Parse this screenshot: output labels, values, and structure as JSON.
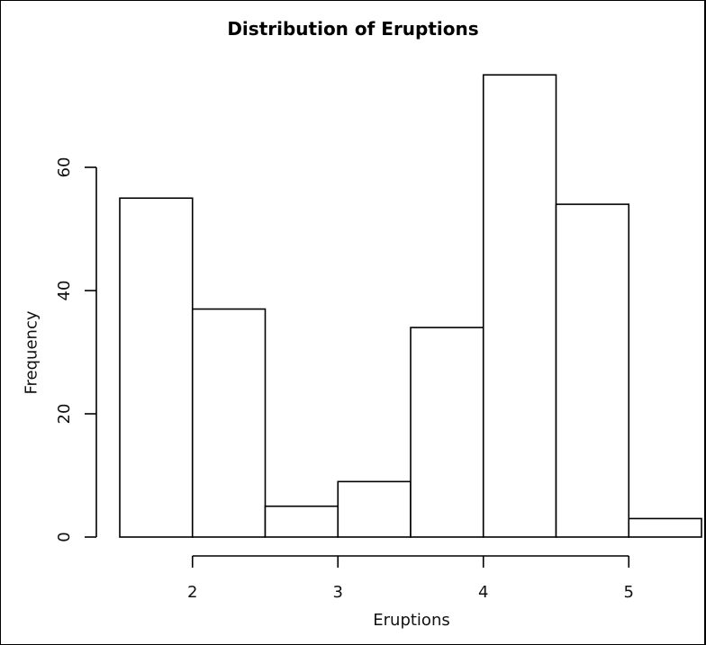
{
  "chart_data": {
    "type": "bar",
    "title": "Distribution of Eruptions",
    "xlabel": "Eruptions",
    "ylabel": "Frequency",
    "bins": [
      [
        1.5,
        2.0
      ],
      [
        2.0,
        2.5
      ],
      [
        2.5,
        3.0
      ],
      [
        3.0,
        3.5
      ],
      [
        3.5,
        4.0
      ],
      [
        4.0,
        4.5
      ],
      [
        4.5,
        5.0
      ],
      [
        5.0,
        5.5
      ]
    ],
    "values": [
      55,
      37,
      5,
      9,
      34,
      75,
      54,
      3
    ],
    "x_ticks": [
      "2",
      "3",
      "4",
      "5"
    ],
    "y_ticks": [
      "0",
      "20",
      "40",
      "60"
    ],
    "xlim": [
      1.5,
      5.5
    ],
    "ylim": [
      0,
      75
    ],
    "grid": false,
    "bar_fill": "#ffffff",
    "bar_edge": "#000000"
  }
}
